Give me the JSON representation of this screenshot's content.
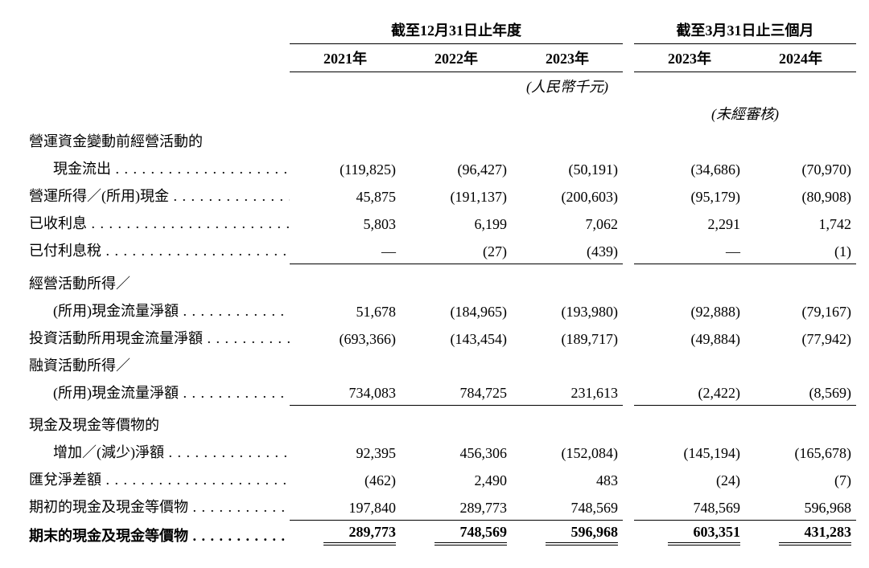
{
  "headers": {
    "annual_group": "截至12月31日止年度",
    "quarter_group": "截至3月31日止三個月",
    "y2021": "2021年",
    "y2022": "2022年",
    "y2023": "2023年",
    "q2023": "2023年",
    "q2024": "2024年",
    "unit": "(人民幣千元)",
    "unaudited": "(未經審核)"
  },
  "rows": {
    "r1a": "營運資金變動前經營活動的",
    "r1b": "現金流出",
    "r1": {
      "c1": "(119,825)",
      "c2": "(96,427)",
      "c3": "(50,191)",
      "c4": "(34,686)",
      "c5": "(70,970)"
    },
    "r2a": "營運所得／(所用)現金",
    "r2": {
      "c1": "45,875",
      "c2": "(191,137)",
      "c3": "(200,603)",
      "c4": "(95,179)",
      "c5": "(80,908)"
    },
    "r3a": "已收利息",
    "r3": {
      "c1": "5,803",
      "c2": "6,199",
      "c3": "7,062",
      "c4": "2,291",
      "c5": "1,742"
    },
    "r4a": "已付利息稅",
    "r4": {
      "c1": "—",
      "c2": "(27)",
      "c3": "(439)",
      "c4": "—",
      "c5": "(1)"
    },
    "r5a": "經營活動所得／",
    "r5b": "(所用)現金流量淨額",
    "r5": {
      "c1": "51,678",
      "c2": "(184,965)",
      "c3": "(193,980)",
      "c4": "(92,888)",
      "c5": "(79,167)"
    },
    "r6a": "投資活動所用現金流量淨額",
    "r6": {
      "c1": "(693,366)",
      "c2": "(143,454)",
      "c3": "(189,717)",
      "c4": "(49,884)",
      "c5": "(77,942)"
    },
    "r7a": "融資活動所得／",
    "r7b": "(所用)現金流量淨額",
    "r7": {
      "c1": "734,083",
      "c2": "784,725",
      "c3": "231,613",
      "c4": "(2,422)",
      "c5": "(8,569)"
    },
    "r8a": "現金及現金等價物的",
    "r8b": "增加／(減少)淨額",
    "r8": {
      "c1": "92,395",
      "c2": "456,306",
      "c3": "(152,084)",
      "c4": "(145,194)",
      "c5": "(165,678)"
    },
    "r9a": "匯兌淨差額",
    "r9": {
      "c1": "(462)",
      "c2": "2,490",
      "c3": "483",
      "c4": "(24)",
      "c5": "(7)"
    },
    "r10a": "期初的現金及現金等價物",
    "r10": {
      "c1": "197,840",
      "c2": "289,773",
      "c3": "748,569",
      "c4": "748,569",
      "c5": "596,968"
    },
    "r11a": "期末的現金及現金等價物",
    "r11": {
      "c1": "289,773",
      "c2": "748,569",
      "c3": "596,968",
      "c4": "603,351",
      "c5": "431,283"
    }
  }
}
